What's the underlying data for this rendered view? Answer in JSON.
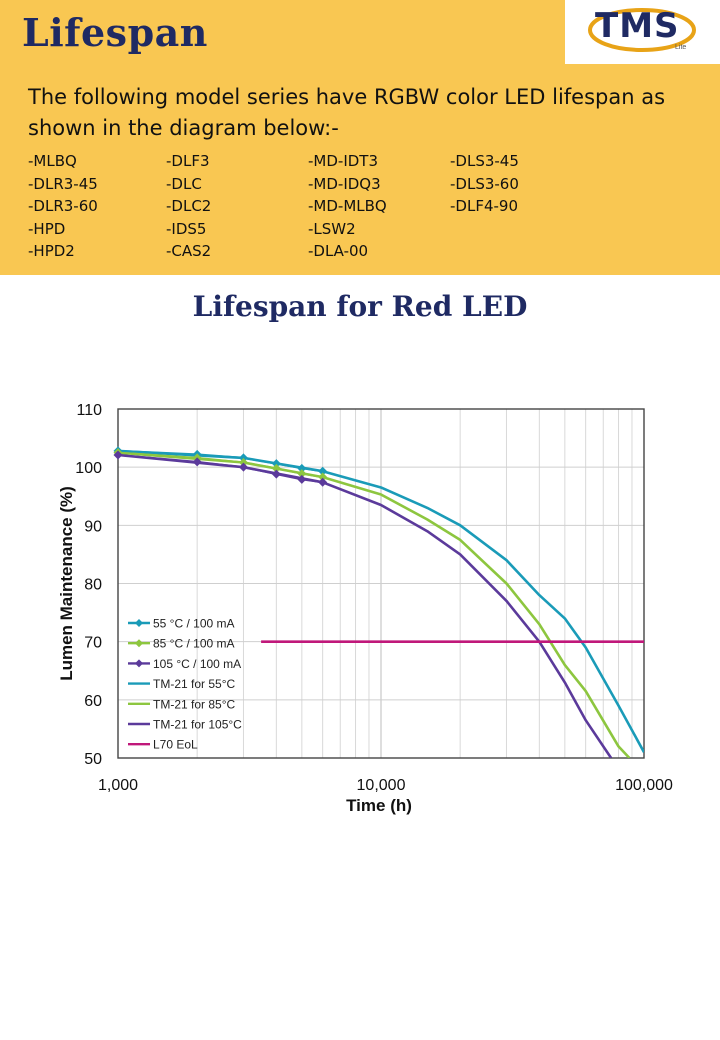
{
  "page": {
    "title": "Lifespan",
    "logo_text": "TMS",
    "logo_sub": "Lite",
    "intro": "The following model series have RGBW color LED lifespan as shown in the diagram below:-",
    "model_columns": [
      [
        "-MLBQ",
        "-DLR3-45",
        "-DLR3-60",
        "-HPD",
        "-HPD2"
      ],
      [
        "-DLF3",
        "-DLC",
        "-DLC2",
        "-IDS5",
        "-CAS2"
      ],
      [
        "-MD-IDT3",
        "-MD-IDQ3",
        "-MD-MLBQ",
        "-LSW2",
        "-DLA-00"
      ],
      [
        "-DLS3-45",
        "-DLS3-60",
        "-DLF4-90"
      ]
    ],
    "chart_heading": "Lifespan for Red LED",
    "colors": {
      "band": "#f9c752",
      "heading": "#1f2a63"
    }
  },
  "chart_data": {
    "type": "line",
    "xlabel": "Time (h)",
    "ylabel": "Lumen Maintenance (%)",
    "x_scale": "log",
    "xlim": [
      1000,
      100000
    ],
    "ylim": [
      50,
      110
    ],
    "x_ticks": [
      1000,
      10000,
      100000
    ],
    "x_tick_labels": [
      "1,000",
      "10,000",
      "100,000"
    ],
    "y_ticks": [
      50,
      60,
      70,
      80,
      90,
      100,
      110
    ],
    "y_tick_labels": [
      "50",
      "60",
      "70",
      "80",
      "90",
      "100",
      "110"
    ],
    "grid": true,
    "legend": "bottom-left",
    "series": [
      {
        "name": "55 °C / 100 mA",
        "style": "markers",
        "marker": "diamond",
        "color": "#1a9bb8",
        "points": [
          [
            1000,
            102.8
          ],
          [
            2000,
            102.2
          ],
          [
            3000,
            101.6
          ],
          [
            4000,
            100.6
          ],
          [
            5000,
            99.8
          ],
          [
            6000,
            99.3
          ]
        ]
      },
      {
        "name": "85 °C / 100 mA",
        "style": "markers",
        "marker": "diamond",
        "color": "#8dc63f",
        "points": [
          [
            1000,
            102.5
          ],
          [
            2000,
            101.6
          ],
          [
            3000,
            100.8
          ],
          [
            4000,
            99.8
          ],
          [
            5000,
            98.9
          ],
          [
            6000,
            98.3
          ]
        ]
      },
      {
        "name": "105 °C / 100 mA",
        "style": "markers",
        "marker": "diamond",
        "color": "#5b3a9b",
        "points": [
          [
            1000,
            102.1
          ],
          [
            2000,
            100.9
          ],
          [
            3000,
            100.0
          ],
          [
            4000,
            98.8
          ],
          [
            5000,
            97.9
          ],
          [
            6000,
            97.4
          ]
        ]
      },
      {
        "name": "TM-21 for 55°C",
        "style": "line",
        "color": "#1a9bb8",
        "points": [
          [
            1000,
            102.8
          ],
          [
            3000,
            101.6
          ],
          [
            6000,
            99.3
          ],
          [
            10000,
            96.5
          ],
          [
            15000,
            93.0
          ],
          [
            20000,
            90.0
          ],
          [
            30000,
            84.0
          ],
          [
            40000,
            78.0
          ],
          [
            50000,
            74.0
          ],
          [
            60000,
            69.0
          ],
          [
            80000,
            59.0
          ],
          [
            100000,
            51.0
          ]
        ]
      },
      {
        "name": "TM-21 for 85°C",
        "style": "line",
        "color": "#8dc63f",
        "points": [
          [
            1000,
            102.5
          ],
          [
            3000,
            100.8
          ],
          [
            6000,
            98.3
          ],
          [
            10000,
            95.3
          ],
          [
            15000,
            91.0
          ],
          [
            20000,
            87.5
          ],
          [
            30000,
            80.0
          ],
          [
            40000,
            73.0
          ],
          [
            50000,
            66.0
          ],
          [
            60000,
            61.5
          ],
          [
            80000,
            52.0
          ],
          [
            88000,
            50.0
          ]
        ]
      },
      {
        "name": "TM-21 for 105°C",
        "style": "line",
        "color": "#5b3a9b",
        "points": [
          [
            1000,
            102.1
          ],
          [
            3000,
            100.0
          ],
          [
            6000,
            97.4
          ],
          [
            10000,
            93.5
          ],
          [
            15000,
            89.0
          ],
          [
            20000,
            85.0
          ],
          [
            30000,
            77.0
          ],
          [
            40000,
            70.0
          ],
          [
            50000,
            63.0
          ],
          [
            60000,
            56.5
          ],
          [
            75000,
            50.0
          ]
        ]
      },
      {
        "name": "L70 EoL",
        "style": "line",
        "color": "#c0187a",
        "points": [
          [
            3500,
            70
          ],
          [
            100000,
            70
          ]
        ]
      }
    ]
  }
}
